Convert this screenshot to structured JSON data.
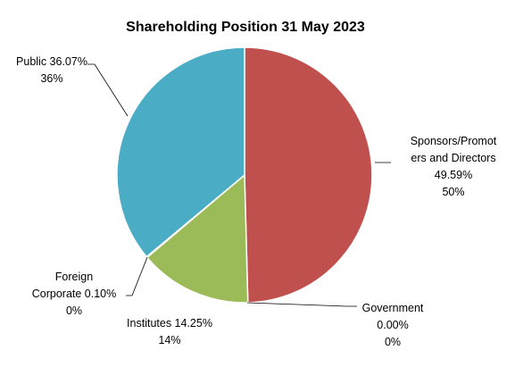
{
  "chart_data": {
    "type": "pie",
    "title": "Shareholding Position 31 May 2023",
    "slices": [
      {
        "key": "sponsors",
        "value": 49.59,
        "label_lines": [
          "Sponsors/Promot",
          "ers and Directors",
          "49.59%",
          "50%"
        ],
        "color": "#C0504D"
      },
      {
        "key": "government",
        "value": 0.0,
        "label_lines": [
          "Government",
          "0.00%",
          "0%"
        ],
        "color": "#8064A2"
      },
      {
        "key": "institutes",
        "value": 14.25,
        "label_lines": [
          "Institutes 14.25%",
          "14%"
        ],
        "color": "#9BBB59"
      },
      {
        "key": "foreign-corporate",
        "value": 0.1,
        "label_lines": [
          "Foreign",
          "Corporate 0.10%",
          "0%"
        ],
        "color": "#F79646"
      },
      {
        "key": "public",
        "value": 36.07,
        "label_lines": [
          "Public 36.07%",
          "36%"
        ],
        "color": "#4BACC6"
      }
    ],
    "start_angle": "12 o'clock",
    "direction": "clockwise",
    "legend": "none"
  }
}
